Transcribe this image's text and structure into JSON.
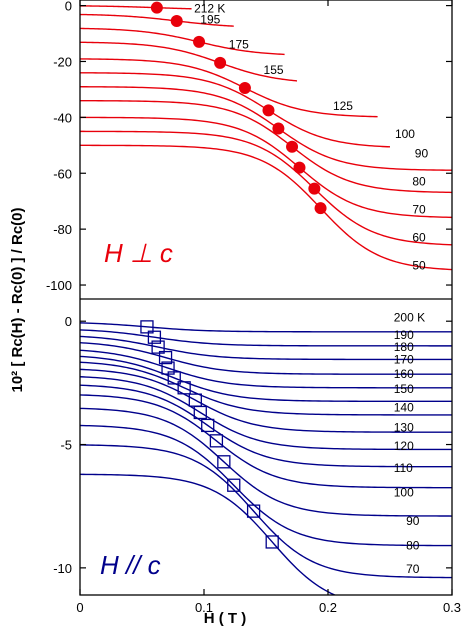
{
  "chart_data": [
    {
      "type": "line",
      "panel": "top",
      "panel_label": "H ⊥ c",
      "color": "#e8000b",
      "marker": "filled-circle",
      "xlim": [
        0,
        0.3
      ],
      "ylim": [
        -105,
        2
      ],
      "yticks": [
        0,
        -20,
        -40,
        -60,
        -80,
        -100
      ],
      "ytick_labels": [
        "0",
        "-20",
        "-40",
        "-60",
        "-80",
        "-100"
      ],
      "series": [
        {
          "label": "212 K",
          "T": 212,
          "y0": 0,
          "drop": 1.5,
          "xc": 0.062,
          "mx": 0.062,
          "xend": 0.09,
          "label_x": 0.092,
          "label_y": -1
        },
        {
          "label": "195",
          "T": 195,
          "y0": -3,
          "drop": 5,
          "xc": 0.078,
          "mx": 0.078,
          "xend": 0.124,
          "label_x": 0.097,
          "label_y": -5
        },
        {
          "label": "175",
          "T": 175,
          "y0": -8,
          "drop": 10,
          "xc": 0.096,
          "mx": 0.096,
          "xend": 0.165,
          "label_x": 0.12,
          "label_y": -14
        },
        {
          "label": "155",
          "T": 155,
          "y0": -13,
          "drop": 15,
          "xc": 0.113,
          "mx": 0.113,
          "xend": 0.175,
          "label_x": 0.148,
          "label_y": -23
        },
        {
          "label": "125",
          "T": 125,
          "y0": -19,
          "drop": 21,
          "xc": 0.133,
          "mx": 0.133,
          "xend": 0.24,
          "label_x": 0.204,
          "label_y": -36
        },
        {
          "label": "100",
          "T": 100,
          "y0": -24,
          "drop": 27,
          "xc": 0.152,
          "mx": 0.152,
          "xend": 0.25,
          "label_x": 0.254,
          "label_y": -46
        },
        {
          "label": "90",
          "T": 90,
          "y0": -29,
          "drop": 30,
          "xc": 0.16,
          "mx": 0.16,
          "xend": 0.3,
          "label_x": 0.27,
          "label_y": -53
        },
        {
          "label": "80",
          "T": 80,
          "y0": -34,
          "drop": 33,
          "xc": 0.171,
          "mx": 0.171,
          "xend": 0.3,
          "label_x": 0.268,
          "label_y": -63
        },
        {
          "label": "70",
          "T": 70,
          "y0": -40,
          "drop": 36,
          "xc": 0.177,
          "mx": 0.177,
          "xend": 0.3,
          "label_x": 0.268,
          "label_y": -73
        },
        {
          "label": "60",
          "T": 60,
          "y0": -45,
          "drop": 41,
          "xc": 0.189,
          "mx": 0.189,
          "xend": 0.3,
          "label_x": 0.268,
          "label_y": -83
        },
        {
          "label": "50",
          "T": 50,
          "y0": -50,
          "drop": 45,
          "xc": 0.194,
          "mx": 0.194,
          "xend": 0.3,
          "label_x": 0.268,
          "label_y": -93
        }
      ]
    },
    {
      "type": "line",
      "panel": "bottom",
      "panel_label": "H // c",
      "color": "#00008b",
      "marker": "open-square",
      "xlim": [
        0,
        0.3
      ],
      "ylim": [
        -11.1,
        0.9
      ],
      "yticks": [
        0,
        -5,
        -10
      ],
      "ytick_labels": [
        "0",
        "-5",
        "-10"
      ],
      "xticks": [
        0,
        0.1,
        0.2,
        0.3
      ],
      "xtick_labels": [
        "0",
        "0.1",
        "0.2",
        "0.3"
      ],
      "xlabel": "H ( T )",
      "ylabel": "10² [ Rc(H) - Rc(0) ] / Rc(0)",
      "series": [
        {
          "label": "200 K",
          "T": 200,
          "y0": -0.03,
          "drop": 0.4,
          "xc": 0.054,
          "mx": 0.054,
          "label_x": 0.253,
          "label_y": 0.15
        },
        {
          "label": "190",
          "T": 190,
          "y0": -0.3,
          "drop": 0.7,
          "xc": 0.06,
          "mx": 0.06,
          "label_x": 0.253,
          "label_y": -0.55
        },
        {
          "label": "180",
          "T": 180,
          "y0": -0.55,
          "drop": 1.0,
          "xc": 0.063,
          "mx": 0.063,
          "label_x": 0.253,
          "label_y": -1.05
        },
        {
          "label": "170",
          "T": 170,
          "y0": -0.8,
          "drop": 1.35,
          "xc": 0.069,
          "mx": 0.069,
          "label_x": 0.253,
          "label_y": -1.55
        },
        {
          "label": "",
          "T": 165,
          "y0": -1.1,
          "drop": 1.6,
          "xc": 0.071,
          "mx": 0.071,
          "label_x": null,
          "label_y": null
        },
        {
          "label": "160",
          "T": 160,
          "y0": -1.35,
          "drop": 1.9,
          "xc": 0.076,
          "mx": 0.076,
          "label_x": 0.253,
          "label_y": -2.15
        },
        {
          "label": "150",
          "T": 150,
          "y0": -1.6,
          "drop": 2.2,
          "xc": 0.084,
          "mx": 0.084,
          "label_x": 0.253,
          "label_y": -2.75
        },
        {
          "label": "140",
          "T": 140,
          "y0": -1.9,
          "drop": 2.6,
          "xc": 0.093,
          "mx": 0.093,
          "label_x": 0.253,
          "label_y": -3.5
        },
        {
          "label": "130",
          "T": 130,
          "y0": -2.2,
          "drop": 3.0,
          "xc": 0.097,
          "mx": 0.097,
          "label_x": 0.253,
          "label_y": -4.3
        },
        {
          "label": "120",
          "T": 120,
          "y0": -2.55,
          "drop": 3.35,
          "xc": 0.103,
          "mx": 0.103,
          "label_x": 0.253,
          "label_y": -5.05
        },
        {
          "label": "110",
          "T": 110,
          "y0": -2.95,
          "drop": 3.8,
          "xc": 0.11,
          "mx": 0.11,
          "label_x": 0.253,
          "label_y": -5.95
        },
        {
          "label": "100",
          "T": 100,
          "y0": -3.5,
          "drop": 4.4,
          "xc": 0.116,
          "mx": 0.116,
          "label_x": 0.253,
          "label_y": -6.95
        },
        {
          "label": "90",
          "T": 90,
          "y0": -4.2,
          "drop": 4.9,
          "xc": 0.124,
          "mx": 0.124,
          "label_x": 0.263,
          "label_y": -8.1
        },
        {
          "label": "80",
          "T": 80,
          "y0": -5.0,
          "drop": 5.4,
          "xc": 0.14,
          "mx": 0.14,
          "label_x": 0.263,
          "label_y": -9.1
        },
        {
          "label": "70",
          "T": 70,
          "y0": -6.2,
          "drop": 5.5,
          "xc": 0.155,
          "mx": 0.155,
          "label_x": 0.263,
          "label_y": -10.05
        }
      ]
    }
  ]
}
